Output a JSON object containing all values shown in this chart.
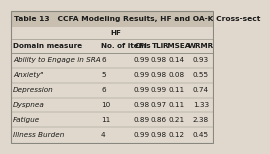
{
  "title": "Table 13   CCFA Modeling Results, HF and OA-K Cross-sect",
  "subheader": "HF",
  "col_headers": [
    "Domain measure",
    "No. of items",
    "CFI",
    "TLI",
    "RMSEA",
    "WRMR"
  ],
  "rows": [
    [
      "Ability to Engage in SRA",
      "6",
      "0.99",
      "0.98",
      "0.14",
      "0.93"
    ],
    [
      "Anxietyᵃ",
      "5",
      "0.99",
      "0.98",
      "0.08",
      "0.55"
    ],
    [
      "Depression",
      "6",
      "0.99",
      "0.99",
      "0.11",
      "0.74"
    ],
    [
      "Dyspnea",
      "10",
      "0.98",
      "0.97",
      "0.11",
      "1.33"
    ],
    [
      "Fatigue",
      "11",
      "0.89",
      "0.86",
      "0.21",
      "2.38"
    ],
    [
      "Illness Burden",
      "4",
      "0.99",
      "0.98",
      "0.12",
      "0.45"
    ]
  ],
  "title_bg": "#c8bfb0",
  "body_bg": "#e0d8cc",
  "border_color": "#888880",
  "text_color": "#1a1a1a",
  "font_size": 5.2,
  "title_font_size": 5.4
}
